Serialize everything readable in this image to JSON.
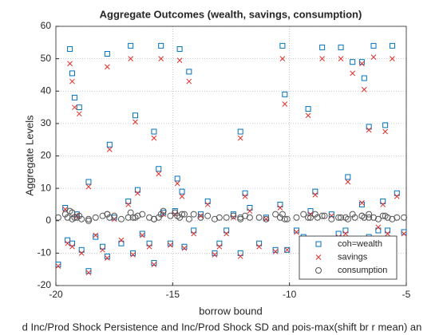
{
  "chart_data": {
    "type": "scatter",
    "title": "Aggregate Outcomes (wealth, savings, consumption)",
    "xlabel": "borrow bound",
    "ylabel": "Aggregate Levels",
    "caption": "d Inc/Prod Shock Persistence and Inc/Prod Shock SD and pois-max(shift br r mean) an",
    "xlim": [
      -20,
      -5
    ],
    "xticks": [
      -20,
      -15,
      -10,
      -5
    ],
    "ylim": [
      -20,
      60
    ],
    "yticks": [
      -20,
      -10,
      0,
      10,
      20,
      30,
      40,
      50,
      60
    ],
    "grid": true,
    "legend": "lower right",
    "x": [
      -19.4,
      -19.3,
      -19.2,
      -19.0,
      -18.6,
      -17.8,
      -17.7,
      -16.8,
      -16.6,
      -16.5,
      -15.8,
      -15.6,
      -15.5,
      -14.8,
      -14.7,
      -14.6,
      -14.3,
      -12.1,
      -11.9,
      -10.3,
      -10.2,
      -9.2,
      -8.9,
      -8.6,
      -7.8,
      -7.5,
      -7.3,
      -6.9,
      -6.8,
      -6.6,
      -6.4,
      -5.9,
      -5.6,
      -5.4,
      -19.9,
      -19.6,
      -19.5,
      -19.3,
      -19.1,
      -18.9,
      -18.6,
      -18.3,
      -18.0,
      -17.8,
      -17.5,
      -17.2,
      -16.9,
      -16.7,
      -16.3,
      -16.0,
      -15.8,
      -15.4,
      -15.1,
      -14.9,
      -14.5,
      -14.1,
      -13.8,
      -13.5,
      -13.2,
      -13.0,
      -12.7,
      -12.4,
      -12.1,
      -11.7,
      -11.3,
      -11.0,
      -10.6,
      -10.4,
      -10.1,
      -9.7,
      -9.4,
      -9.1,
      -8.8,
      -8.5,
      -8.2,
      -7.9,
      -7.6,
      -7.2,
      -6.9,
      -6.6,
      -6.2,
      -6.0,
      -5.8,
      -5.1
    ],
    "series": [
      {
        "name": "coh=wealth",
        "color": "#0072bd",
        "marker": "square",
        "values": [
          53,
          45.5,
          38,
          35,
          12,
          51.5,
          23.5,
          54,
          32.5,
          9.5,
          27.5,
          16,
          54,
          13,
          53,
          9,
          46,
          27.5,
          8.5,
          54,
          39,
          34.5,
          9,
          53.5,
          53.5,
          13.5,
          49,
          49,
          44,
          29,
          54,
          29.5,
          54,
          8.5,
          -13.5,
          4,
          -6,
          -7,
          2,
          -9,
          -15.5,
          -5,
          -8,
          -11,
          1,
          -7,
          6,
          -10,
          -4,
          -7,
          -13,
          2.5,
          -7,
          3,
          -8,
          -3,
          2,
          6,
          -10,
          -7,
          -3,
          2,
          -10,
          4,
          -7,
          1,
          -9,
          5,
          -9,
          -3,
          -5,
          3,
          -7,
          -6,
          2,
          -4,
          -3,
          -6,
          5,
          -5,
          -3,
          6,
          -3,
          -3.5
        ]
      },
      {
        "name": "savings",
        "color": "#e0302b",
        "marker": "x",
        "values": [
          48.5,
          43,
          35,
          33,
          10.5,
          47.5,
          22,
          50,
          30.5,
          8.5,
          25.5,
          14.5,
          50,
          11.5,
          49.5,
          7.5,
          43,
          25.5,
          7.5,
          50,
          36,
          32.5,
          8,
          50,
          50,
          12,
          45.5,
          48.5,
          40.5,
          28,
          50.5,
          27.5,
          50,
          7.5,
          -14,
          3.5,
          -7,
          -8,
          1.5,
          -10,
          -16,
          -4.5,
          -9,
          -11.5,
          0.5,
          -6,
          5,
          -10.5,
          -4.5,
          -8,
          -13.5,
          2,
          -7.5,
          2,
          -8.5,
          -4,
          1.5,
          5,
          -10.5,
          -8,
          -4,
          1,
          -11,
          3,
          -8,
          0.5,
          -9.5,
          4,
          -9,
          -3.5,
          -6,
          2,
          -8,
          -6.5,
          1.5,
          -5,
          -4,
          -5.5,
          5.5,
          -5.5,
          -2,
          5,
          -4,
          -4
        ]
      },
      {
        "name": "consumption",
        "color": "#555555",
        "marker": "circle",
        "values": [
          3,
          2.5,
          1,
          1.5,
          0.5,
          2,
          1,
          2.5,
          1,
          1.5,
          0.5,
          1,
          2,
          1.5,
          1,
          2,
          0.5,
          1,
          1.5,
          2,
          0.5,
          1,
          2,
          1.5,
          1,
          0.5,
          2,
          1.5,
          1,
          2,
          1,
          1.5,
          0.5,
          1,
          1,
          2,
          1,
          0.5,
          1,
          0.5,
          0,
          1,
          1.5,
          2,
          1.5,
          0.5,
          1,
          1,
          2,
          1,
          0.5,
          3,
          1.5,
          2.5,
          2,
          2,
          1,
          1.5,
          0.5,
          1,
          1,
          1.5,
          0.5,
          1,
          1,
          0.5,
          2,
          1,
          0.5,
          1,
          2,
          1,
          1,
          1.5,
          0.5,
          1,
          1,
          1,
          1.5,
          1,
          0.5,
          1.5,
          1,
          1
        ]
      }
    ]
  }
}
